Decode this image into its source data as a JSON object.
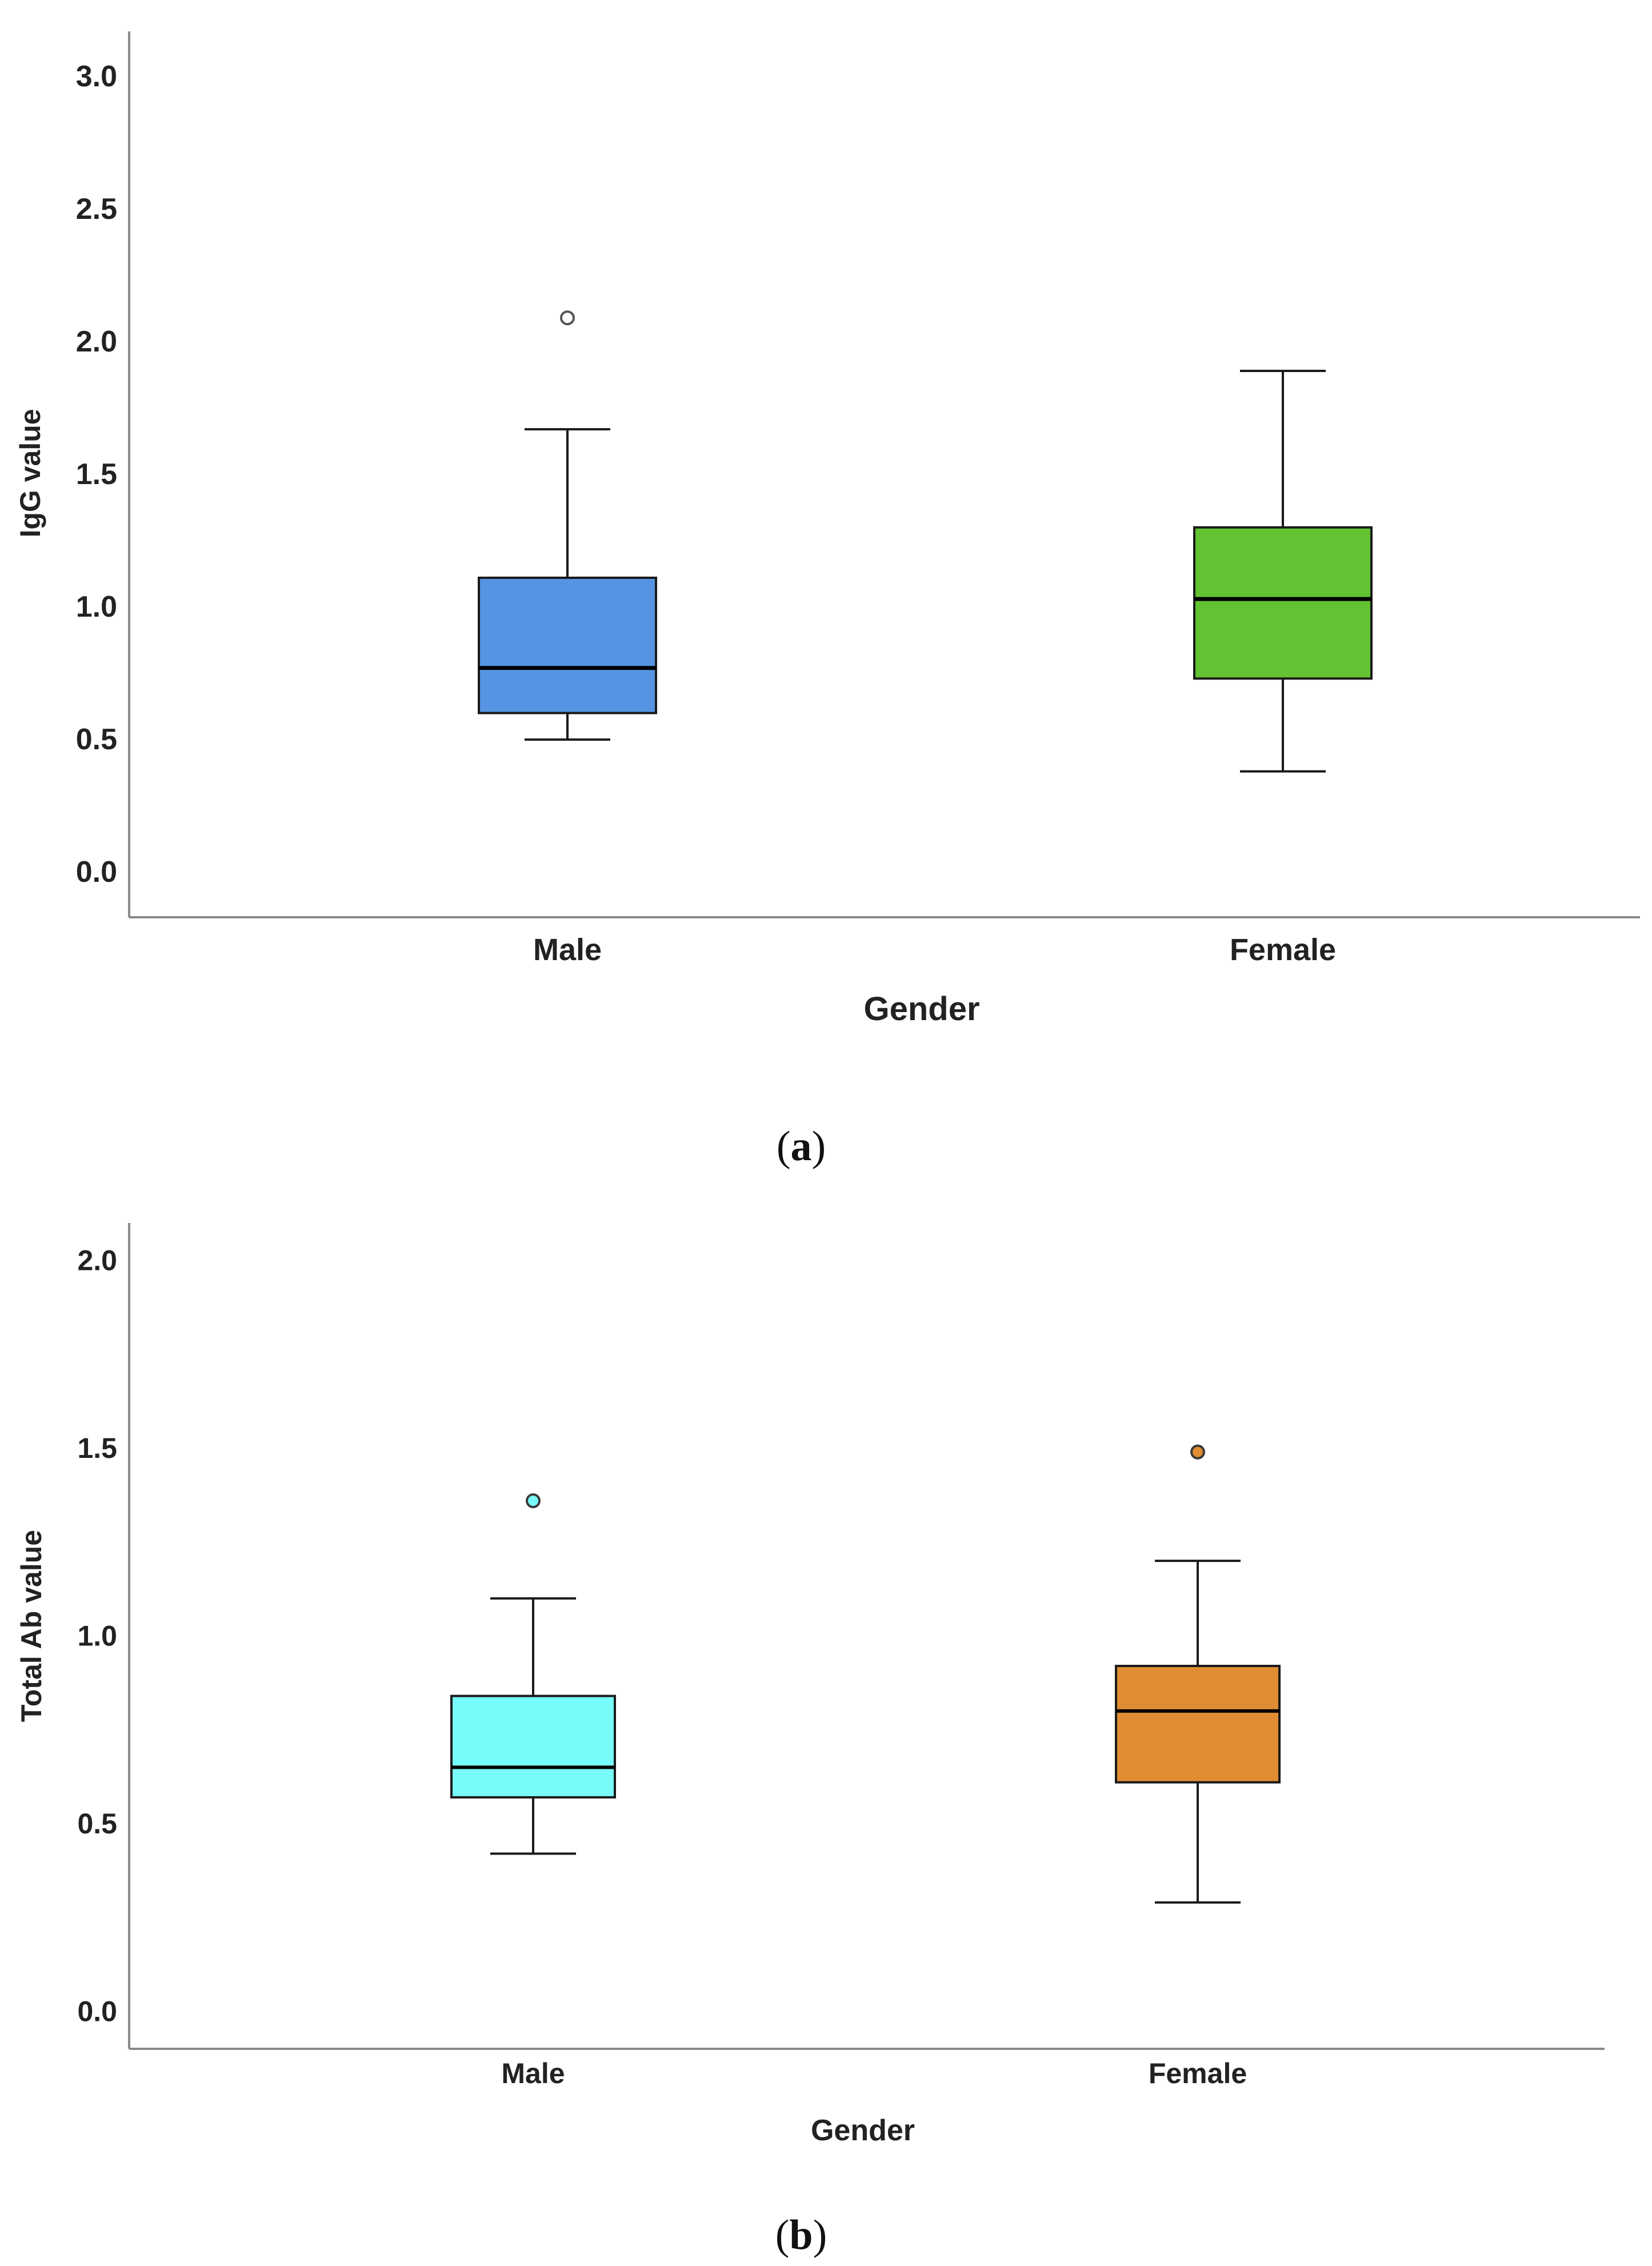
{
  "chart_data": [
    {
      "type": "boxplot",
      "panel_label": "a",
      "title": "",
      "xlabel": "Gender",
      "ylabel": "IgG value",
      "categories": [
        "Male",
        "Female"
      ],
      "ylim": [
        -0.17,
        3.17
      ],
      "yticks": [
        0.0,
        0.5,
        1.0,
        1.5,
        2.0,
        2.5,
        3.0
      ],
      "ytick_labels": [
        "0.0",
        "0.5",
        "1.0",
        "1.5",
        "2.0",
        "2.5",
        "3.0"
      ],
      "grid": false,
      "boxes": [
        {
          "category": "Male",
          "whisker_low": 0.5,
          "q1": 0.6,
          "median": 0.77,
          "q3": 1.11,
          "whisker_high": 1.67,
          "outliers": [
            2.09
          ],
          "color": "#5594e3"
        },
        {
          "category": "Female",
          "whisker_low": 0.38,
          "q1": 0.73,
          "median": 1.03,
          "q3": 1.3,
          "whisker_high": 1.89,
          "outliers": [],
          "color": "#62c232"
        }
      ]
    },
    {
      "type": "boxplot",
      "panel_label": "b",
      "title": "",
      "xlabel": "Gender",
      "ylabel": "Total Ab value",
      "categories": [
        "Male",
        "Female"
      ],
      "ylim": [
        -0.1,
        2.1
      ],
      "yticks": [
        0.0,
        0.5,
        1.0,
        1.5,
        2.0
      ],
      "ytick_labels": [
        "0.0",
        "0.5",
        "1.0",
        "1.5",
        "2.0"
      ],
      "grid": false,
      "boxes": [
        {
          "category": "Male",
          "whisker_low": 0.42,
          "q1": 0.57,
          "median": 0.65,
          "q3": 0.84,
          "whisker_high": 1.1,
          "outliers": [
            1.36
          ],
          "color": "#78fbfb"
        },
        {
          "category": "Female",
          "whisker_low": 0.29,
          "q1": 0.61,
          "median": 0.8,
          "q3": 0.92,
          "whisker_high": 1.2,
          "outliers": [
            1.49
          ],
          "color": "#e08c33"
        }
      ]
    }
  ]
}
